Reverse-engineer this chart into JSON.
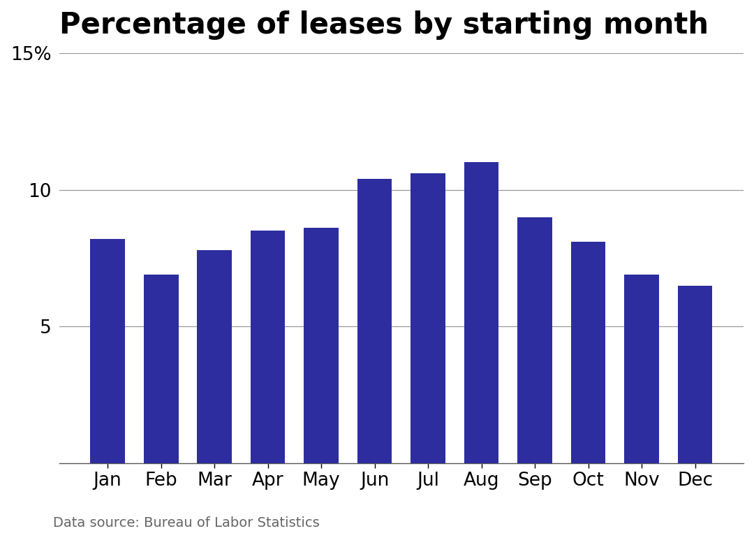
{
  "title": "Percentage of leases by starting month",
  "categories": [
    "Jan",
    "Feb",
    "Mar",
    "Apr",
    "May",
    "Jun",
    "Jul",
    "Aug",
    "Sep",
    "Oct",
    "Nov",
    "Dec"
  ],
  "values": [
    8.2,
    6.9,
    7.8,
    8.5,
    8.6,
    10.4,
    10.6,
    11.0,
    9.0,
    8.1,
    6.9,
    6.5
  ],
  "bar_color": "#2D2D9F",
  "background_color": "#ffffff",
  "ylim": [
    0,
    15
  ],
  "yticks": [
    5,
    10,
    15
  ],
  "ytick_labels": [
    "5",
    "10",
    "15%"
  ],
  "grid_color": "#999999",
  "title_fontsize": 30,
  "tick_fontsize": 19,
  "source_text": "Data source: Bureau of Labor Statistics",
  "source_fontsize": 14
}
